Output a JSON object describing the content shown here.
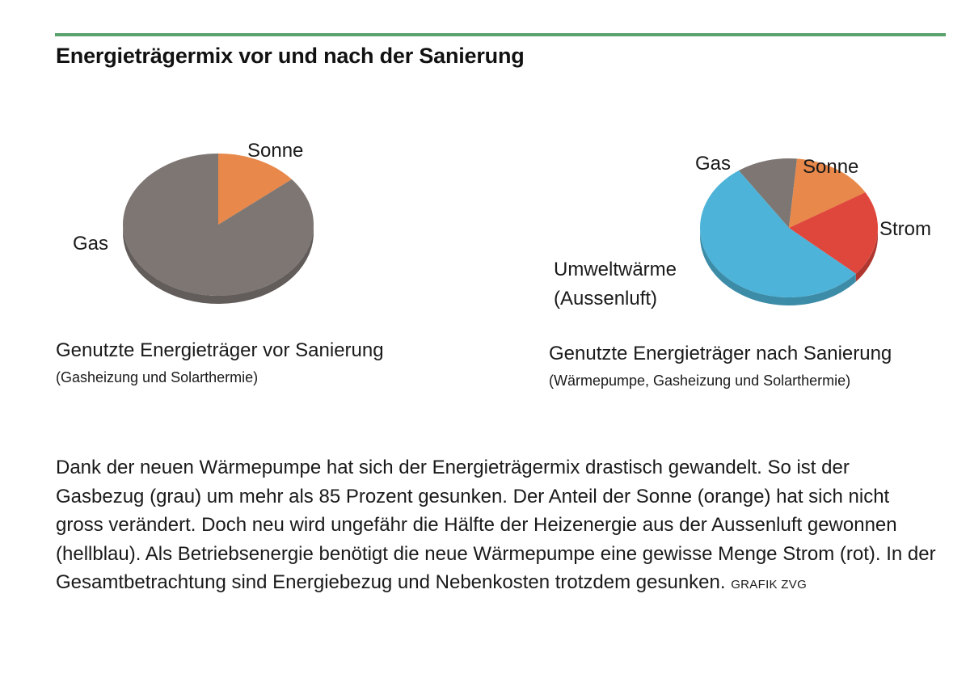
{
  "title": "Energieträgermix vor und nach der Sanierung",
  "chart_data": [
    {
      "type": "pie",
      "title": "Genutzte Energieträger vor Sanierung",
      "subtitle": "(Gasheizung und Solarthermie)",
      "slices": [
        {
          "label": "Sonne",
          "value": 14,
          "color": "#e8884a"
        },
        {
          "label": "Gas",
          "value": 86,
          "color": "#7d7673"
        }
      ]
    },
    {
      "type": "pie",
      "title": "Genutzte Energieträger nach Sanierung",
      "subtitle": "(Wärmepumpe, Gasheizung und Solarthermie)",
      "slices": [
        {
          "label": "Gas",
          "value": 11,
          "color": "#7d7673"
        },
        {
          "label": "Sonne",
          "value": 15,
          "color": "#e8884a"
        },
        {
          "label": "Strom",
          "value": 20,
          "color": "#e0473c"
        },
        {
          "label": "Umweltwärme\n(Aussenluft)",
          "value": 54,
          "color": "#4db3d8"
        }
      ]
    }
  ],
  "labels": {
    "before_sonne": "Sonne",
    "before_gas": "Gas",
    "after_gas": "Gas",
    "after_sonne": "Sonne",
    "after_strom": "Strom",
    "after_umwelt_1": "Umweltwärme",
    "after_umwelt_2": "(Aussenluft)"
  },
  "body": {
    "text": "Dank der neuen Wärmepumpe hat sich der Energieträgermix drastisch gewandelt. So ist der Gasbezug (grau) um mehr als 85 Prozent gesunken. Der Anteil der Sonne (orange) hat sich nicht gross verändert. Doch neu wird ungefähr die Hälfte der Heizenergie aus der Aussenluft gewonnen (hellblau). Als Betriebsenergie benötigt die neue Wärmepumpe eine gewisse Menge Strom (rot). In der Gesamtbetrachtung sind Energiebezug und Nebenkosten trotzdem gesunken.",
    "credit": "GRAFIK ZVG"
  }
}
